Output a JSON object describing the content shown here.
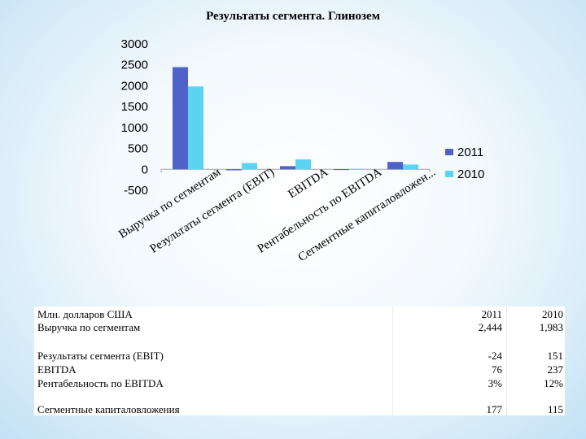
{
  "chart_data": {
    "type": "bar",
    "title": "Результаты сегмента. Глинозем",
    "categories": [
      "Выручка по сегментам",
      "Результаты сегмента (EBIT)",
      "EBITDA",
      "Рентабельность по EBITDA",
      "Сегментные капиталовложен..."
    ],
    "series": [
      {
        "name": "2011",
        "values": [
          2444,
          -24,
          76,
          3,
          177
        ],
        "color": "#4e62c8"
      },
      {
        "name": "2010",
        "values": [
          1983,
          151,
          237,
          12,
          115
        ],
        "color": "#5bd3f2"
      }
    ],
    "ylim": [
      -500,
      3000
    ],
    "yticks": [
      "-500",
      "0",
      "500",
      "1000",
      "1500",
      "2000",
      "2500",
      "3000"
    ],
    "legend_position": "right",
    "grid": false
  },
  "table": {
    "header_label": "Млн. долларов США",
    "years": [
      "2011",
      "2010"
    ],
    "rows": [
      {
        "label": "Выручка по сегментам",
        "v2011": "2,444",
        "v2010": "1,983"
      },
      {
        "label": "Результаты сегмента (EBIT)",
        "v2011": "-24",
        "v2010": "151"
      },
      {
        "label": "EBITDA",
        "v2011": "76",
        "v2010": "237"
      },
      {
        "label": "Рентабельность по EBITDA",
        "v2011": "3%",
        "v2010": "12%"
      },
      {
        "label": "Сегментные капиталовложения",
        "v2011": "177",
        "v2010": "115"
      }
    ]
  }
}
